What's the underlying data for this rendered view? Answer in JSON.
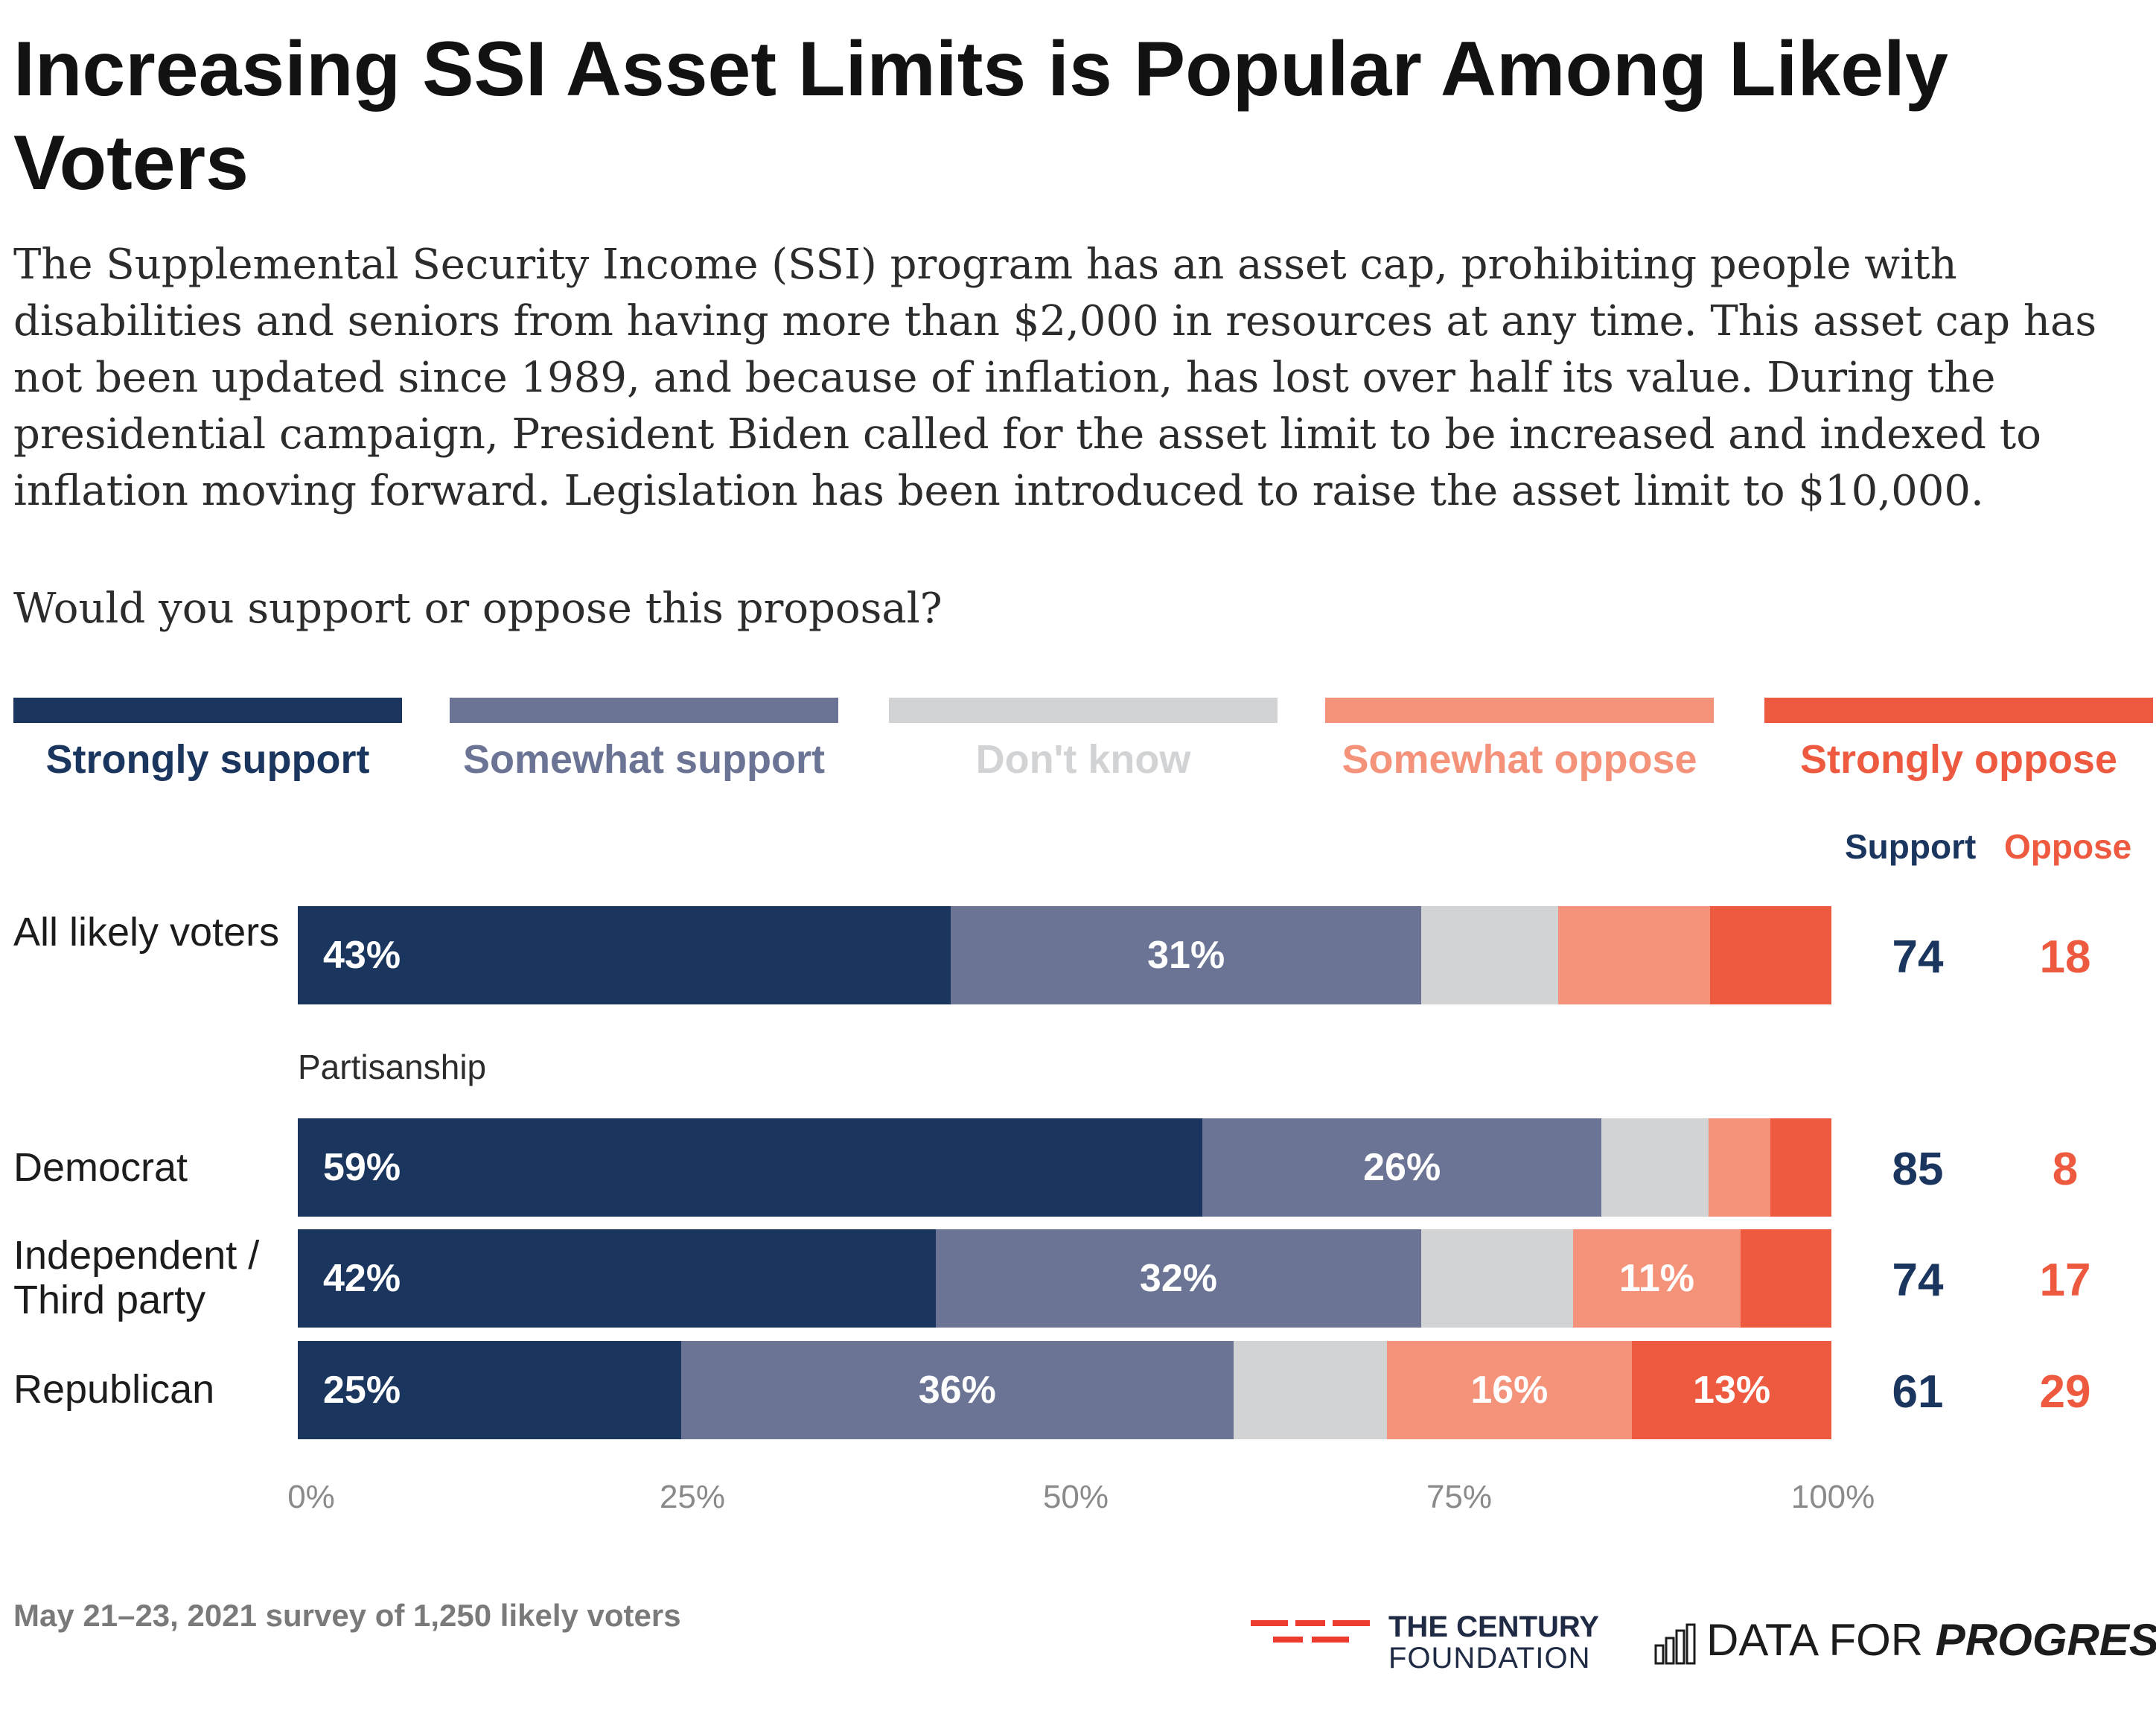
{
  "title": "Increasing SSI Asset Limits is Popular Among Likely Voters",
  "description": "The Supplemental Security Income (SSI) program has an asset cap, prohibiting people with disabilities and seniors from having more than $2,000 in resources at any time. This asset cap has not been updated since 1989, and because of inflation, has lost over half its value. During the presidential campaign, President Biden called for the asset limit to be increased and indexed to inflation moving forward. Legislation has been introduced to raise the asset limit to $10,000.",
  "question": "Would you support or oppose this proposal?",
  "colors": {
    "strongly_support": "#1a355e",
    "somewhat_support": "#6b7494",
    "dont_know": "#d2d3d5",
    "somewhat_oppose": "#f4927a",
    "strongly_oppose": "#ee5a3f",
    "support_text": "#1a355e",
    "oppose_text": "#ee5a3f"
  },
  "chart_data": {
    "type": "bar",
    "orientation": "horizontal",
    "stacked": true,
    "legend": [
      "Strongly support",
      "Somewhat support",
      "Don't know",
      "Somewhat oppose",
      "Strongly oppose"
    ],
    "summary_headers": {
      "support": "Support",
      "oppose": "Oppose"
    },
    "group_label": "Partisanship",
    "rows": [
      {
        "label": "All likely voters",
        "values": [
          43,
          31,
          9,
          10,
          8
        ],
        "shown": [
          "43%",
          "31%",
          "",
          "",
          ""
        ],
        "support": "74",
        "oppose": "18"
      },
      {
        "label": "Democrat",
        "values": [
          59,
          26,
          7,
          4,
          4
        ],
        "shown": [
          "59%",
          "26%",
          "",
          "",
          ""
        ],
        "support": "85",
        "oppose": "8"
      },
      {
        "label": "Independent / Third party",
        "values": [
          42,
          32,
          10,
          11,
          6
        ],
        "shown": [
          "42%",
          "32%",
          "",
          "11%",
          ""
        ],
        "support": "74",
        "oppose": "17"
      },
      {
        "label": "Republican",
        "values": [
          25,
          36,
          10,
          16,
          13
        ],
        "shown": [
          "25%",
          "36%",
          "",
          "16%",
          "13%"
        ],
        "support": "61",
        "oppose": "29"
      }
    ],
    "x_ticks": [
      "0%",
      "25%",
      "50%",
      "75%",
      "100%"
    ],
    "xlim": [
      0,
      100
    ]
  },
  "footer": {
    "note": "May 21–23, 2021 survey of 1,250 likely voters",
    "tcf_line1": "THE CENTURY",
    "tcf_line2": "FOUNDATION",
    "dfp_prefix": "DATA FOR ",
    "dfp_emph": "PROGRESS"
  }
}
